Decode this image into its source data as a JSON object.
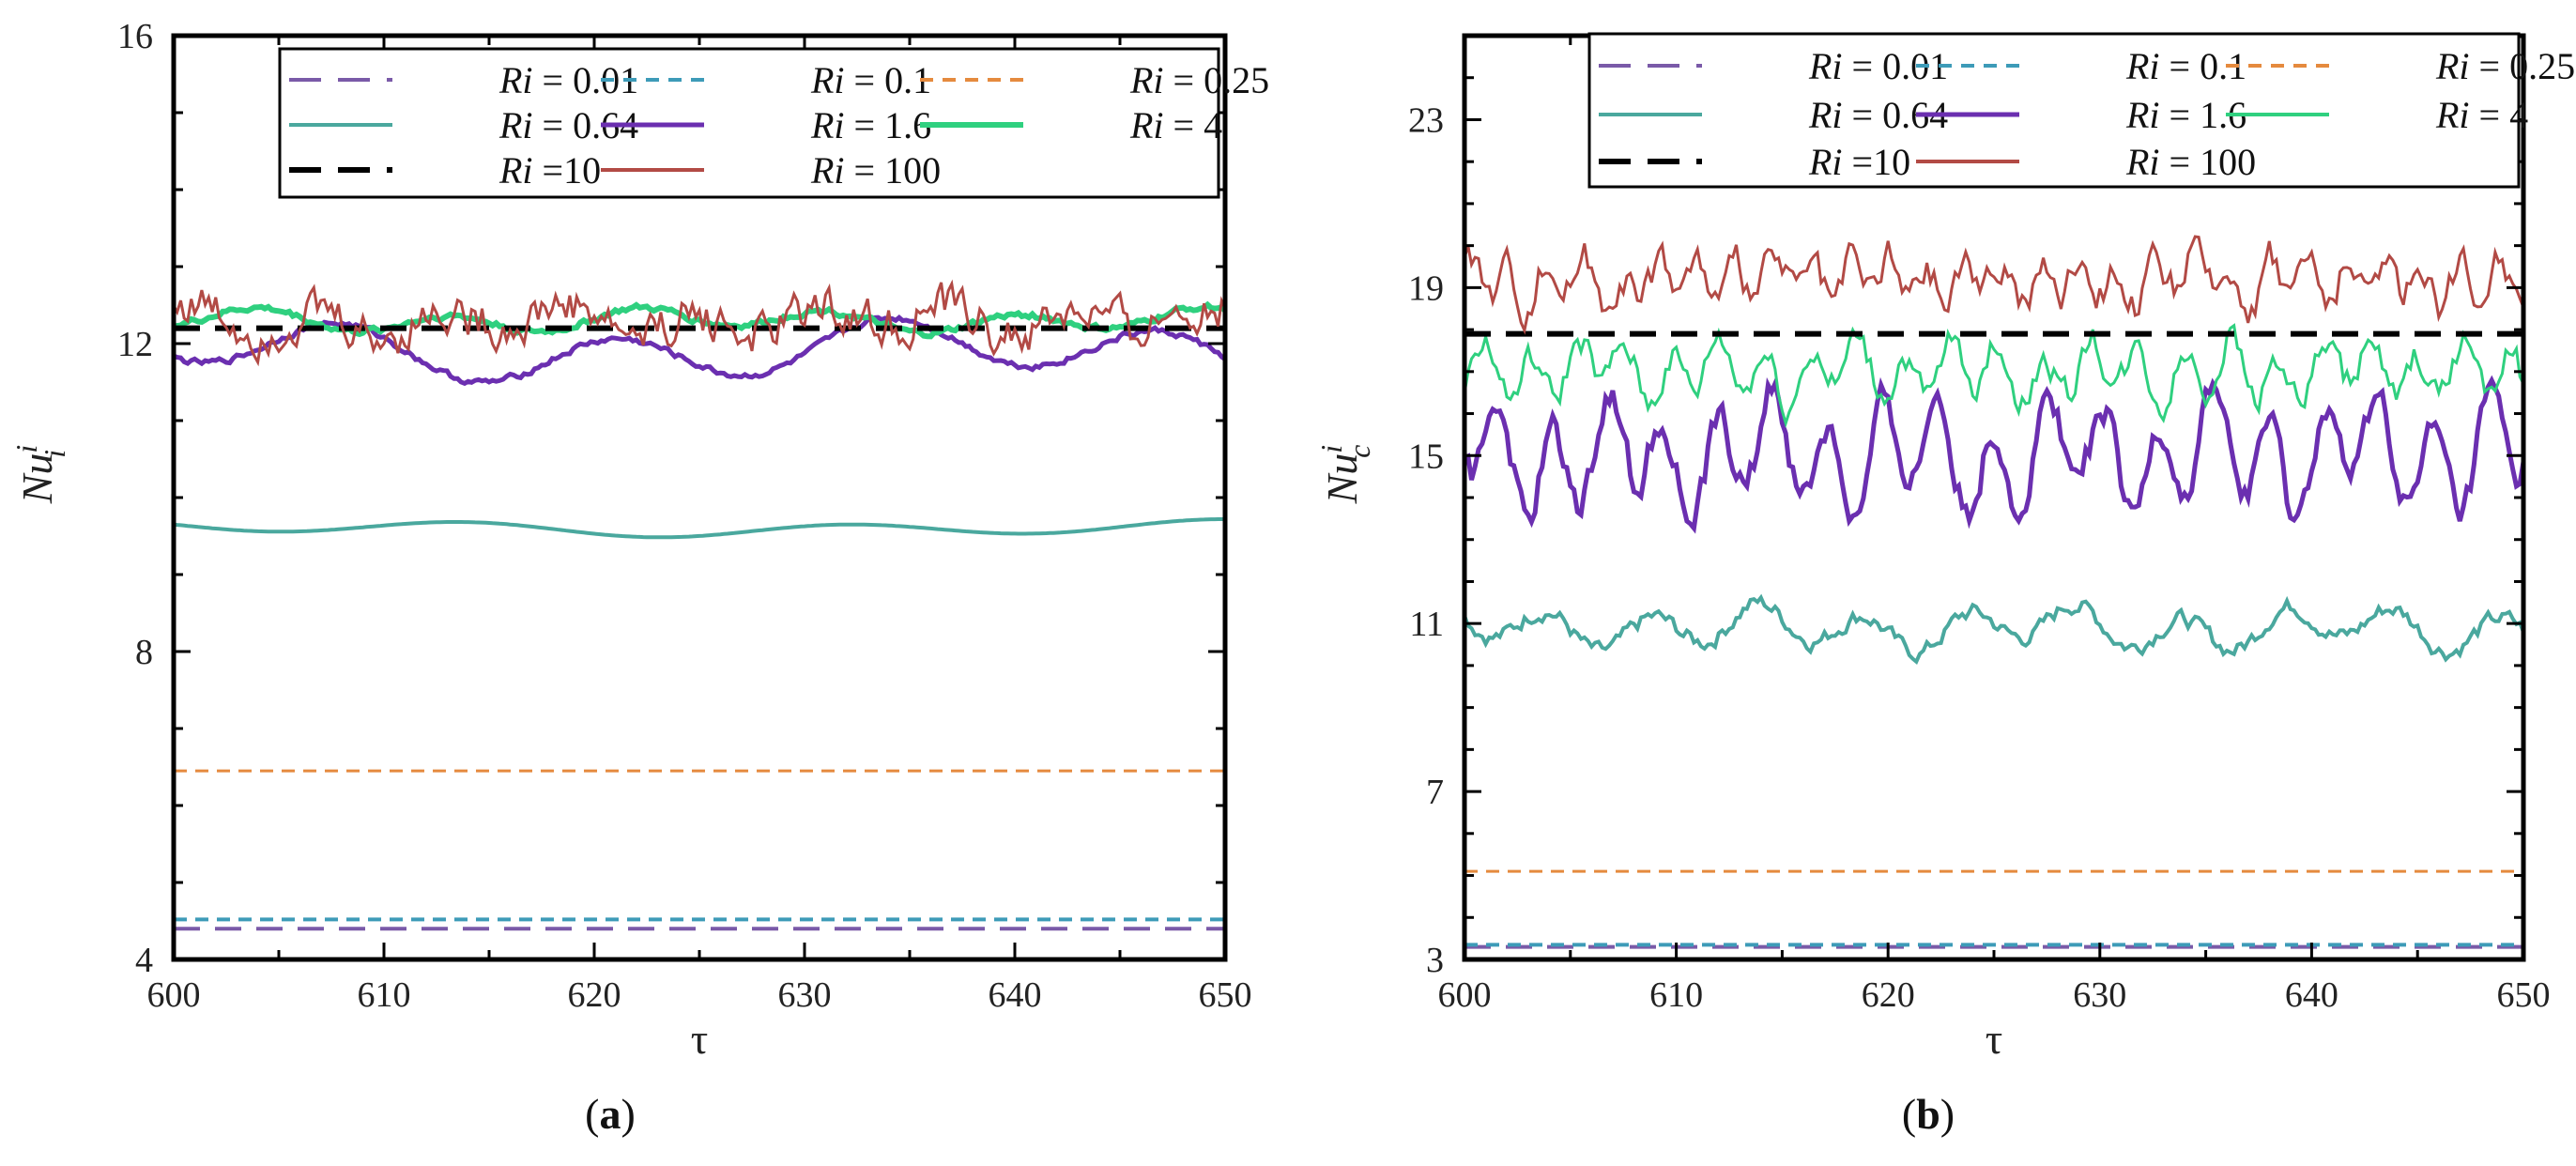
{
  "chart_data": [
    {
      "type": "line",
      "panel_label": "a",
      "xlabel": "τ",
      "ylabel": {
        "base": "Nu",
        "sup": "i",
        "sub": "i"
      },
      "xlim": [
        600,
        650
      ],
      "ylim": [
        4,
        16
      ],
      "xticks": [
        600,
        610,
        620,
        630,
        640,
        650
      ],
      "yticks": [
        4,
        8,
        12,
        16
      ],
      "series": [
        {
          "name": "Ri = 0.01",
          "legend_text": "= 0.01",
          "color": "#7a5aa8",
          "style": "longdash",
          "width": 4,
          "constant": 4.4
        },
        {
          "name": "Ri = 0.1",
          "legend_text": "= 0.1",
          "color": "#3d9bb8",
          "style": "shortdash",
          "width": 4,
          "constant": 4.52
        },
        {
          "name": "Ri = 0.25",
          "legend_text": "= 0.25",
          "color": "#e58a3e",
          "style": "shortdash",
          "width": 3,
          "constant": 6.45
        },
        {
          "name": "Ri = 0.64",
          "legend_text": "= 0.64",
          "color": "#4aa89e",
          "style": "solid",
          "width": 4,
          "base": 9.6,
          "amp": 0.08,
          "period": 18,
          "noise": 0.0
        },
        {
          "name": "Ri = 1.6",
          "legend_text": "= 1.6",
          "color": "#6b2fb0",
          "style": "solid",
          "width": 5,
          "base": 11.9,
          "amp": 0.3,
          "period": 13,
          "noise": 0.05
        },
        {
          "name": "Ri = 4",
          "legend_text": "= 4",
          "color": "#2fd07f",
          "style": "solid",
          "width": 6,
          "base": 12.3,
          "amp": 0.12,
          "period": 9,
          "noise": 0.05
        },
        {
          "name": "Ri =10",
          "legend_text": "=10",
          "color": "#000000",
          "style": "longdash",
          "width": 6,
          "constant": 12.2
        },
        {
          "name": "Ri = 100",
          "legend_text": "= 100",
          "color": "#b24a45",
          "style": "solid",
          "width": 3,
          "base": 12.3,
          "amp": 0.15,
          "period": 6,
          "noise": 0.35
        }
      ]
    },
    {
      "type": "line",
      "panel_label": "b",
      "xlabel": "τ",
      "ylabel": {
        "base": "Nu",
        "sup": "i",
        "sub": "c"
      },
      "xlim": [
        600,
        650
      ],
      "ylim": [
        3,
        25
      ],
      "xticks": [
        600,
        610,
        620,
        630,
        640,
        650
      ],
      "yticks": [
        3,
        7,
        11,
        15,
        19,
        23
      ],
      "series": [
        {
          "name": "Ri = 0.01",
          "legend_text": "= 0.01",
          "color": "#7a5aa8",
          "style": "longdash",
          "width": 4,
          "constant": 3.3
        },
        {
          "name": "Ri = 0.1",
          "legend_text": "= 0.1",
          "color": "#3d9bb8",
          "style": "shortdash",
          "width": 4,
          "constant": 3.35
        },
        {
          "name": "Ri = 0.25",
          "legend_text": "= 0.25",
          "color": "#e58a3e",
          "style": "shortdash",
          "width": 3,
          "constant": 5.1
        },
        {
          "name": "Ri = 0.64",
          "legend_text": "= 0.64",
          "color": "#4aa89e",
          "style": "solid",
          "width": 4,
          "base": 10.9,
          "amp": 0.4,
          "period": 5,
          "noise": 0.25
        },
        {
          "name": "Ri = 1.6",
          "legend_text": "= 1.6",
          "color": "#6b2fb0",
          "style": "solid",
          "width": 5,
          "base": 15.0,
          "amp": 1.1,
          "period": 2.6,
          "noise": 0.5
        },
        {
          "name": "Ri = 4",
          "legend_text": "= 4",
          "color": "#2fd07f",
          "style": "solid",
          "width": 3,
          "base": 17.0,
          "amp": 0.55,
          "period": 2.2,
          "noise": 0.45
        },
        {
          "name": "Ri =10",
          "legend_text": "=10",
          "color": "#000000",
          "style": "longdash",
          "width": 6,
          "constant": 17.9
        },
        {
          "name": "Ri = 100",
          "legend_text": "= 100",
          "color": "#b24a45",
          "style": "solid",
          "width": 3,
          "base": 19.2,
          "amp": 0.4,
          "period": 1.8,
          "noise": 0.55
        }
      ]
    }
  ],
  "legend_prefix": "Ri"
}
